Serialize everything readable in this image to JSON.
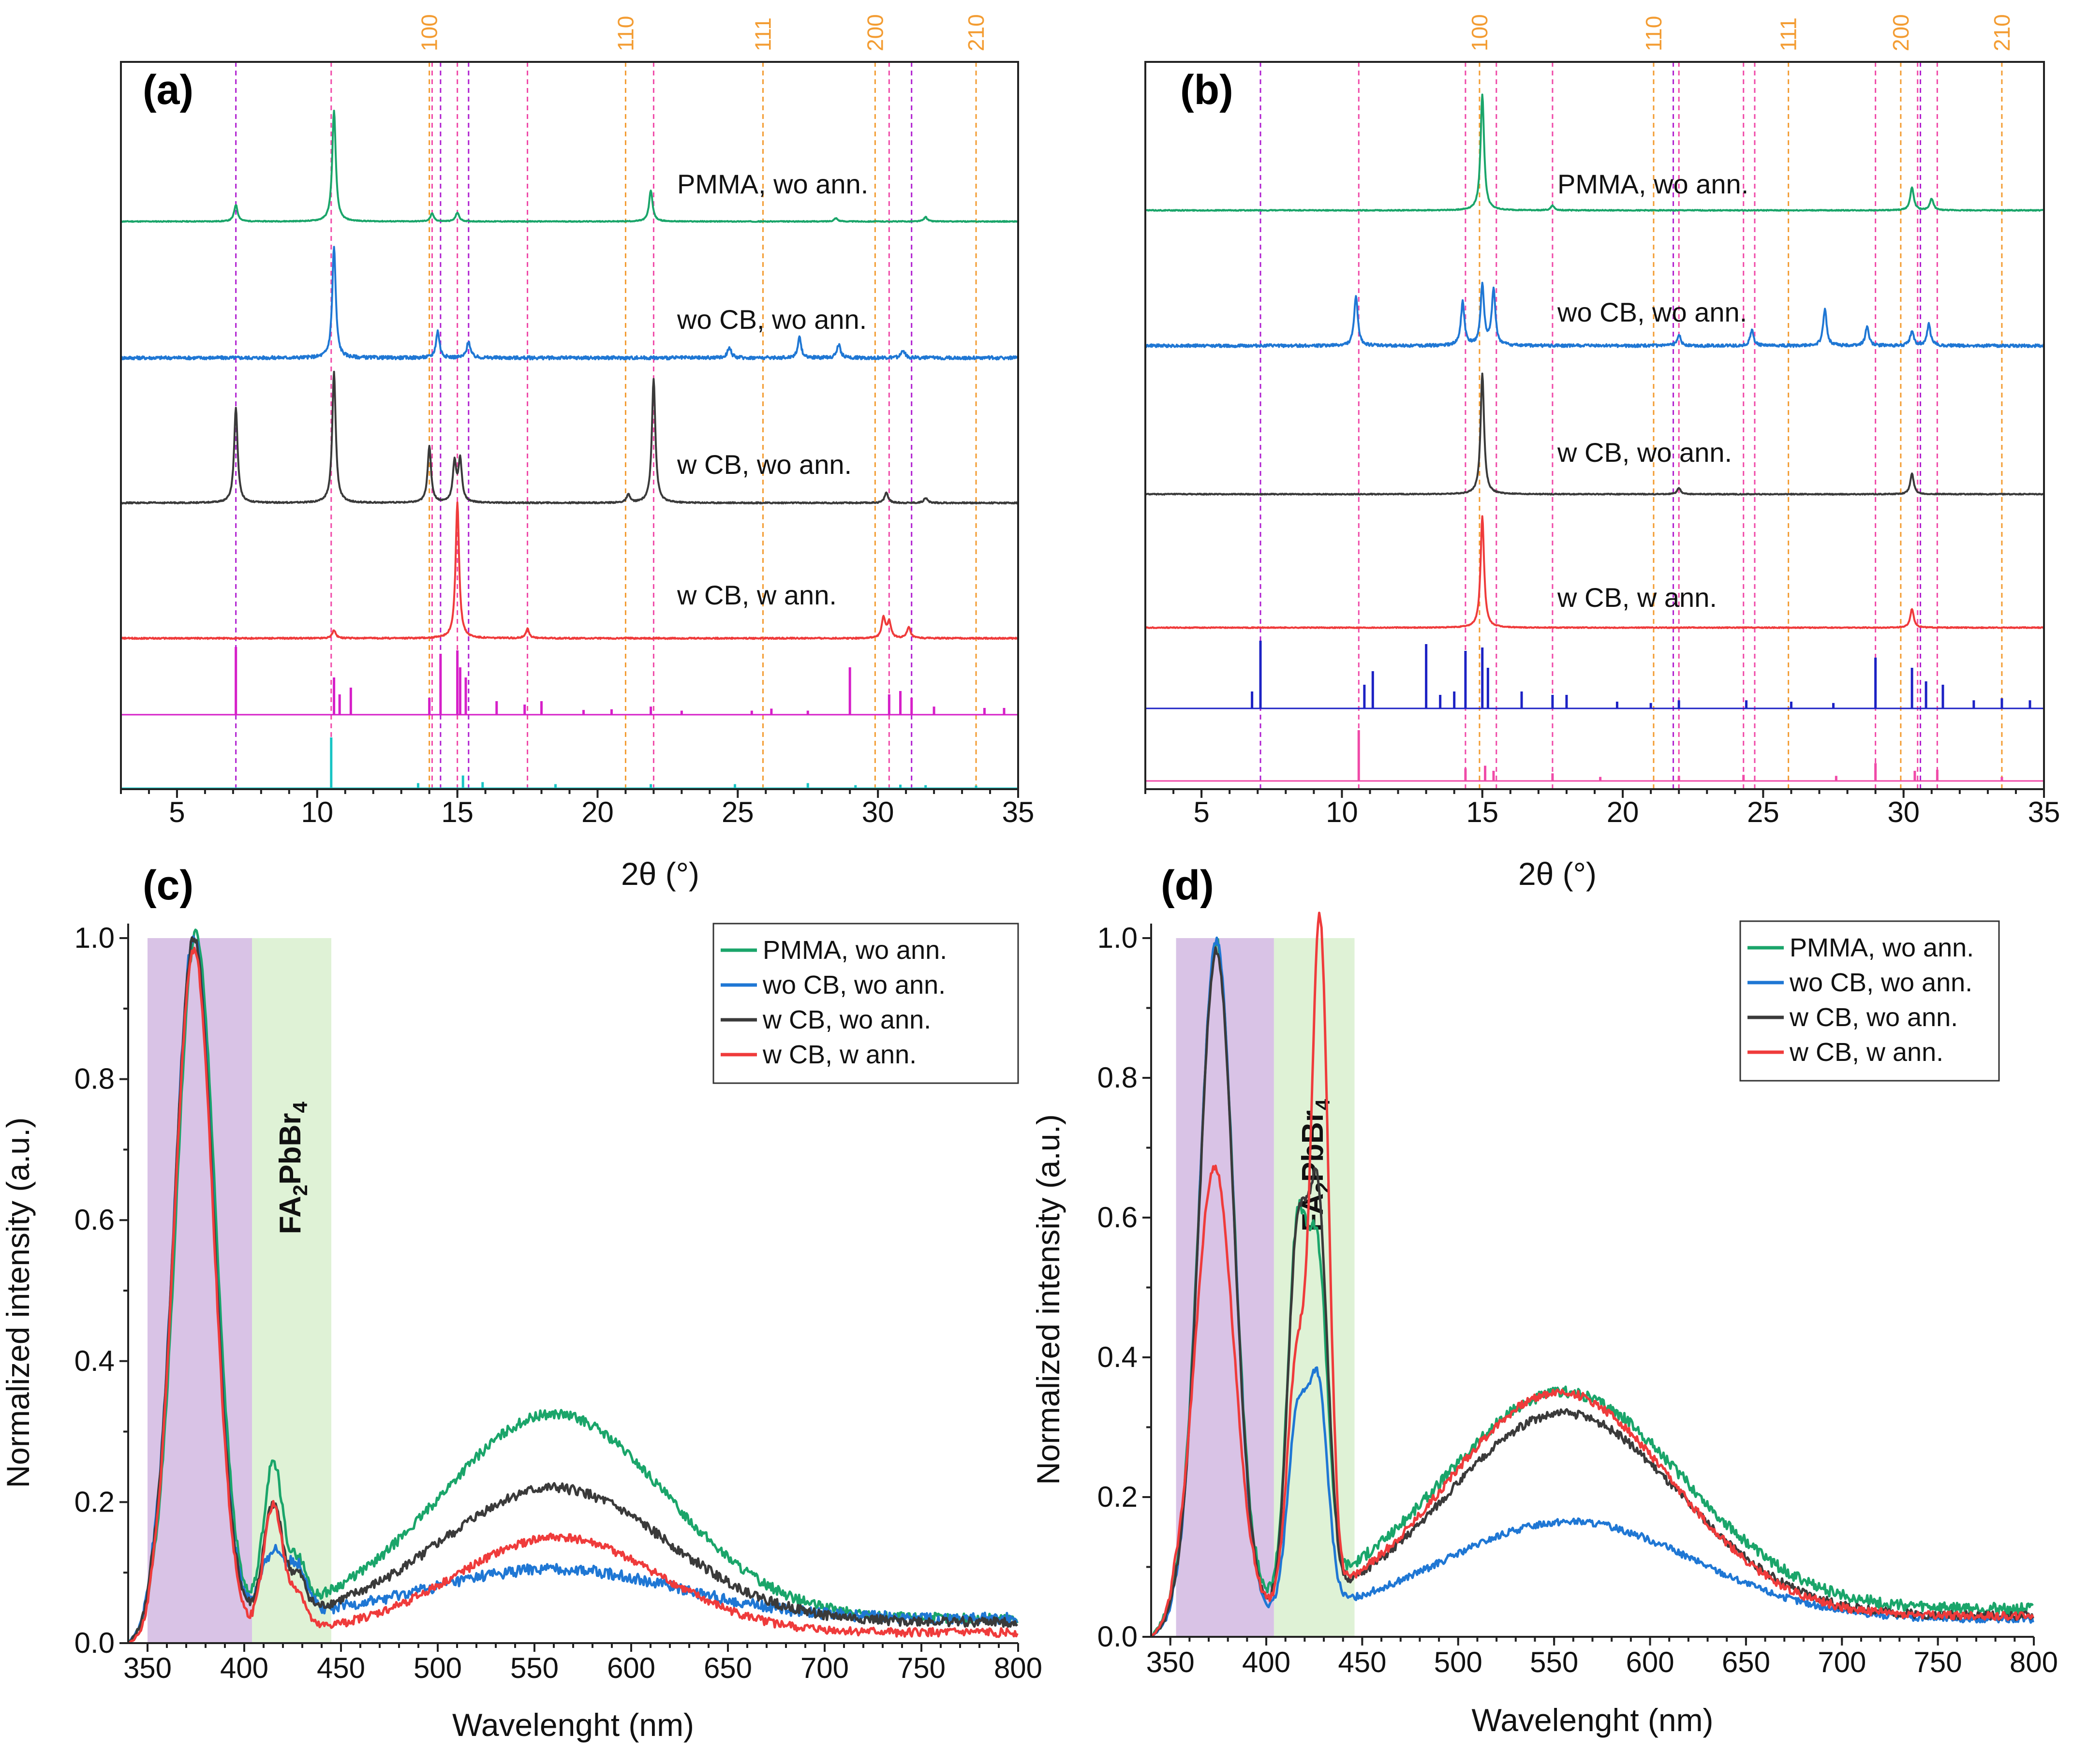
{
  "colors": {
    "pmma": "#1aa56a",
    "wocb": "#1f77d4",
    "wcb": "#3a3a3a",
    "wann": "#ef3b3b",
    "ref_magenta": "#d61fc8",
    "ref_cyan": "#18c4c4",
    "ref_blue": "#1c22c4",
    "ref_pink": "#f04aa8",
    "miller": "#f39c32",
    "guide_pink": "#f04aa8",
    "guide_violet": "#b020d0",
    "band_violet": "#d9c3e6",
    "band_green": "#dff2d6"
  },
  "chart_data": [
    {
      "panel": "(a)",
      "type": "line",
      "xlabel": "2θ (°)",
      "ylabel": "",
      "xlim": [
        3,
        35
      ],
      "xticks": [
        5,
        10,
        15,
        20,
        25,
        30,
        35
      ],
      "x_tick_labels": [
        "5",
        "10",
        "15",
        "20",
        "25",
        "30",
        "35"
      ],
      "miller_indices": [
        {
          "label": "100",
          "x": 14.0
        },
        {
          "label": "110",
          "x": 21.0
        },
        {
          "label": "111",
          "x": 25.9
        },
        {
          "label": "200",
          "x": 29.9
        },
        {
          "label": "210",
          "x": 33.5
        }
      ],
      "guide_lines_pink": [
        10.5,
        14.1,
        15.0,
        17.5,
        22.0,
        30.4
      ],
      "guide_lines_violet": [
        7.1,
        14.4,
        15.4,
        31.2
      ],
      "series": [
        {
          "name": "PMMA, wo ann.",
          "color_key": "pmma",
          "noise": 0.008,
          "peaks": [
            [
              7.1,
              0.15
            ],
            [
              10.6,
              1.0
            ],
            [
              14.1,
              0.07
            ],
            [
              15.0,
              0.08
            ],
            [
              21.9,
              0.28
            ],
            [
              28.5,
              0.03
            ],
            [
              31.7,
              0.04
            ]
          ]
        },
        {
          "name": "wo CB, wo ann.",
          "color_key": "wocb",
          "noise": 0.03,
          "peaks": [
            [
              10.6,
              1.0
            ],
            [
              14.3,
              0.24
            ],
            [
              15.4,
              0.15
            ],
            [
              24.7,
              0.1
            ],
            [
              27.2,
              0.18
            ],
            [
              28.6,
              0.12
            ],
            [
              30.9,
              0.07
            ]
          ]
        },
        {
          "name": "w CB, wo ann.",
          "color_key": "wcb",
          "noise": 0.01,
          "peaks": [
            [
              7.1,
              0.73
            ],
            [
              10.6,
              1.0
            ],
            [
              14.0,
              0.43
            ],
            [
              14.9,
              0.3
            ],
            [
              15.1,
              0.32
            ],
            [
              21.1,
              0.06
            ],
            [
              22.0,
              0.95
            ],
            [
              30.3,
              0.08
            ],
            [
              31.7,
              0.04
            ]
          ]
        },
        {
          "name": "w CB, w ann.",
          "color_key": "wann",
          "noise": 0.01,
          "peaks": [
            [
              10.6,
              0.06
            ],
            [
              15.0,
              1.0
            ],
            [
              17.5,
              0.07
            ],
            [
              30.2,
              0.15
            ],
            [
              30.4,
              0.12
            ],
            [
              31.1,
              0.08
            ]
          ]
        }
      ],
      "reference_patterns": [
        {
          "color_key": "ref_magenta",
          "lines": [
            [
              7.1,
              1.0
            ],
            [
              10.6,
              0.55
            ],
            [
              10.8,
              0.3
            ],
            [
              11.2,
              0.4
            ],
            [
              14.0,
              0.25
            ],
            [
              14.4,
              0.9
            ],
            [
              15.0,
              0.95
            ],
            [
              15.1,
              0.7
            ],
            [
              15.3,
              0.55
            ],
            [
              16.4,
              0.2
            ],
            [
              17.4,
              0.15
            ],
            [
              18.0,
              0.2
            ],
            [
              19.5,
              0.07
            ],
            [
              20.5,
              0.08
            ],
            [
              21.9,
              0.12
            ],
            [
              23.0,
              0.06
            ],
            [
              25.5,
              0.06
            ],
            [
              26.2,
              0.09
            ],
            [
              27.5,
              0.06
            ],
            [
              29.0,
              0.7
            ],
            [
              30.4,
              0.3
            ],
            [
              30.8,
              0.35
            ],
            [
              31.2,
              0.25
            ],
            [
              32.0,
              0.12
            ],
            [
              33.8,
              0.1
            ],
            [
              34.5,
              0.1
            ]
          ]
        },
        {
          "color_key": "ref_cyan",
          "lines": [
            [
              10.5,
              1.0
            ],
            [
              13.6,
              0.1
            ],
            [
              15.2,
              0.25
            ],
            [
              15.9,
              0.12
            ],
            [
              18.5,
              0.08
            ],
            [
              21.9,
              0.08
            ],
            [
              24.9,
              0.08
            ],
            [
              27.5,
              0.1
            ],
            [
              29.2,
              0.06
            ],
            [
              30.8,
              0.07
            ],
            [
              31.7,
              0.06
            ],
            [
              33.5,
              0.05
            ]
          ]
        }
      ]
    },
    {
      "panel": "(b)",
      "type": "line",
      "xlabel": "2θ (°)",
      "ylabel": "",
      "xlim": [
        3,
        35
      ],
      "xticks": [
        5,
        10,
        15,
        20,
        25,
        30,
        35
      ],
      "x_tick_labels": [
        "5",
        "10",
        "15",
        "20",
        "25",
        "30",
        "35"
      ],
      "miller_indices": [
        {
          "label": "100",
          "x": 14.9
        },
        {
          "label": "110",
          "x": 21.1
        },
        {
          "label": "111",
          "x": 25.9
        },
        {
          "label": "200",
          "x": 29.9
        },
        {
          "label": "210",
          "x": 33.5
        }
      ],
      "guide_lines_pink": [
        10.6,
        14.4,
        15.5,
        17.5,
        22.0,
        24.3,
        24.7,
        29.0,
        30.5,
        31.2
      ],
      "guide_lines_violet": [
        7.1,
        21.8,
        30.6
      ],
      "series": [
        {
          "name": "PMMA, wo ann.",
          "color_key": "pmma",
          "noise": 0.008,
          "peaks": [
            [
              15.0,
              1.0
            ],
            [
              17.5,
              0.04
            ],
            [
              30.3,
              0.2
            ],
            [
              31.0,
              0.1
            ]
          ]
        },
        {
          "name": "wo CB, wo ann.",
          "color_key": "wocb",
          "noise": 0.03,
          "peaks": [
            [
              10.5,
              0.52
            ],
            [
              14.3,
              0.45
            ],
            [
              15.0,
              0.62
            ],
            [
              15.4,
              0.58
            ],
            [
              22.0,
              0.12
            ],
            [
              24.6,
              0.16
            ],
            [
              27.2,
              0.38
            ],
            [
              28.7,
              0.2
            ],
            [
              30.3,
              0.15
            ],
            [
              30.9,
              0.22
            ]
          ]
        },
        {
          "name": "w CB, wo ann.",
          "color_key": "wcb",
          "noise": 0.008,
          "peaks": [
            [
              15.0,
              1.0
            ],
            [
              22.0,
              0.05
            ],
            [
              30.3,
              0.17
            ]
          ]
        },
        {
          "name": "w CB, w ann.",
          "color_key": "wann",
          "noise": 0.008,
          "peaks": [
            [
              15.0,
              1.0
            ],
            [
              30.3,
              0.17
            ]
          ]
        }
      ],
      "reference_patterns": [
        {
          "color_key": "ref_blue",
          "lines": [
            [
              6.8,
              0.25
            ],
            [
              7.1,
              1.0
            ],
            [
              10.8,
              0.35
            ],
            [
              11.1,
              0.55
            ],
            [
              13.0,
              0.95
            ],
            [
              13.5,
              0.2
            ],
            [
              14.0,
              0.25
            ],
            [
              14.4,
              0.85
            ],
            [
              15.0,
              0.9
            ],
            [
              15.2,
              0.6
            ],
            [
              16.4,
              0.25
            ],
            [
              17.5,
              0.2
            ],
            [
              18.0,
              0.2
            ],
            [
              19.8,
              0.1
            ],
            [
              21.0,
              0.08
            ],
            [
              22.0,
              0.12
            ],
            [
              24.4,
              0.12
            ],
            [
              26.0,
              0.1
            ],
            [
              27.5,
              0.08
            ],
            [
              29.0,
              0.75
            ],
            [
              30.3,
              0.6
            ],
            [
              30.8,
              0.4
            ],
            [
              31.4,
              0.35
            ],
            [
              32.5,
              0.12
            ],
            [
              33.5,
              0.15
            ],
            [
              34.5,
              0.12
            ]
          ]
        },
        {
          "color_key": "ref_pink",
          "lines": [
            [
              10.6,
              1.0
            ],
            [
              14.4,
              0.25
            ],
            [
              15.1,
              0.3
            ],
            [
              15.4,
              0.2
            ],
            [
              17.5,
              0.15
            ],
            [
              19.2,
              0.08
            ],
            [
              22.0,
              0.1
            ],
            [
              24.3,
              0.12
            ],
            [
              27.6,
              0.1
            ],
            [
              29.0,
              0.35
            ],
            [
              30.4,
              0.2
            ],
            [
              31.2,
              0.22
            ],
            [
              33.5,
              0.08
            ]
          ]
        }
      ]
    },
    {
      "panel": "(c)",
      "type": "line",
      "xlabel": "Wavelenght (nm)",
      "ylabel": "Normalized intensity (a.u.)",
      "xlim": [
        340,
        800
      ],
      "ylim": [
        0,
        1.0
      ],
      "xticks": [
        350,
        400,
        450,
        500,
        550,
        600,
        650,
        700,
        750,
        800
      ],
      "x_tick_labels": [
        "350",
        "400",
        "450",
        "500",
        "550",
        "600",
        "650",
        "700",
        "750",
        "800"
      ],
      "yticks": [
        0.0,
        0.2,
        0.4,
        0.6,
        0.8,
        1.0
      ],
      "y_tick_labels": [
        "0.0",
        "0.2",
        "0.4",
        "0.6",
        "0.8",
        "1.0"
      ],
      "bands": [
        {
          "range": [
            350,
            404
          ],
          "color_key": "band_violet"
        },
        {
          "range": [
            404,
            445
          ],
          "color_key": "band_green",
          "label": "FA2PbBr4"
        }
      ],
      "legend_position": "top-right",
      "series": [
        {
          "name": "PMMA, wo ann.",
          "color_key": "pmma",
          "noise": 0.007,
          "baseline": 0.035,
          "peaks": [
            [
              375,
              0.97,
              10
            ],
            [
              415,
              0.21,
              5
            ],
            [
              428,
              0.06,
              4
            ],
            [
              560,
              0.29,
              58
            ]
          ]
        },
        {
          "name": "wo CB, wo ann.",
          "color_key": "wocb",
          "noise": 0.008,
          "baseline": 0.035,
          "peaks": [
            [
              374,
              0.97,
              10
            ],
            [
              415,
              0.09,
              6
            ],
            [
              428,
              0.06,
              5
            ],
            [
              560,
              0.07,
              65
            ]
          ]
        },
        {
          "name": "w CB, wo ann.",
          "color_key": "wcb",
          "noise": 0.007,
          "baseline": 0.03,
          "peaks": [
            [
              374,
              0.97,
              10
            ],
            [
              415,
              0.16,
              5
            ],
            [
              428,
              0.05,
              4
            ],
            [
              560,
              0.19,
              58
            ]
          ]
        },
        {
          "name": "w CB, w ann.",
          "color_key": "wann",
          "noise": 0.006,
          "baseline": 0.015,
          "peaks": [
            [
              374,
              0.97,
              10
            ],
            [
              415,
              0.18,
              5
            ],
            [
              428,
              0.05,
              4
            ],
            [
              562,
              0.135,
              52
            ]
          ]
        }
      ]
    },
    {
      "panel": "(d)",
      "type": "line",
      "xlabel": "Wavelenght (nm)",
      "ylabel": "Normalized intensity (a.u.)",
      "xlim": [
        340,
        800
      ],
      "ylim": [
        0,
        1.0
      ],
      "xticks": [
        350,
        400,
        450,
        500,
        550,
        600,
        650,
        700,
        750,
        800
      ],
      "x_tick_labels": [
        "350",
        "400",
        "450",
        "500",
        "550",
        "600",
        "650",
        "700",
        "750",
        "800"
      ],
      "yticks": [
        0.0,
        0.2,
        0.4,
        0.6,
        0.8,
        1.0
      ],
      "y_tick_labels": [
        "0.0",
        "0.2",
        "0.4",
        "0.6",
        "0.8",
        "1.0"
      ],
      "bands": [
        {
          "range": [
            353,
            404
          ],
          "color_key": "band_violet"
        },
        {
          "range": [
            404,
            446
          ],
          "color_key": "band_green",
          "label": "FA2PbBr4"
        }
      ],
      "legend_position": "top-right",
      "series": [
        {
          "name": "PMMA, wo ann.",
          "color_key": "pmma",
          "noise": 0.008,
          "baseline": 0.04,
          "peaks": [
            [
              374,
              0.95,
              9
            ],
            [
              416,
              0.5,
              5
            ],
            [
              427,
              0.45,
              5
            ],
            [
              555,
              0.31,
              62
            ]
          ]
        },
        {
          "name": "wo CB, wo ann.",
          "color_key": "wocb",
          "noise": 0.005,
          "baseline": 0.025,
          "peaks": [
            [
              374,
              0.97,
              9
            ],
            [
              416,
              0.27,
              5
            ],
            [
              427,
              0.31,
              5
            ],
            [
              558,
              0.14,
              65
            ]
          ]
        },
        {
          "name": "w CB, wo ann.",
          "color_key": "wcb",
          "noise": 0.006,
          "baseline": 0.03,
          "peaks": [
            [
              374,
              0.95,
              9
            ],
            [
              416,
              0.5,
              5
            ],
            [
              427,
              0.55,
              5
            ],
            [
              555,
              0.29,
              60
            ]
          ]
        },
        {
          "name": "w CB, w ann.",
          "color_key": "wann",
          "noise": 0.006,
          "baseline": 0.03,
          "peaks": [
            [
              373,
              0.64,
              10
            ],
            [
              416,
              0.35,
              5
            ],
            [
              428,
              0.95,
              4.5
            ],
            [
              553,
              0.32,
              58
            ]
          ]
        }
      ]
    }
  ]
}
